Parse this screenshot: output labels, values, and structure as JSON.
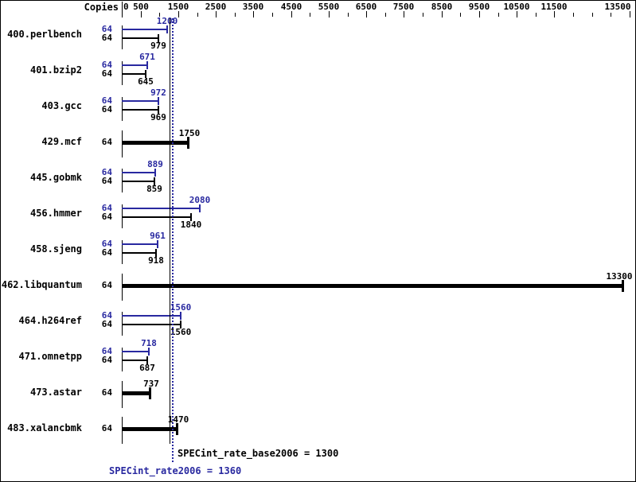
{
  "chart_data": {
    "type": "bar",
    "orientation": "horizontal",
    "copies_header": "Copies",
    "x_axis": {
      "min": 0,
      "max": 13500,
      "tick_step": 500,
      "labeled_ticks": [
        0,
        500,
        1500,
        2500,
        3500,
        4500,
        5500,
        6500,
        7500,
        8500,
        9500,
        10500,
        11500,
        13500
      ]
    },
    "benchmarks": [
      {
        "name": "400.perlbench",
        "bars": [
          {
            "series": "peak",
            "copies": "64",
            "value": 1200
          },
          {
            "series": "base",
            "copies": "64",
            "value": 979
          }
        ]
      },
      {
        "name": "401.bzip2",
        "bars": [
          {
            "series": "peak",
            "copies": "64",
            "value": 671
          },
          {
            "series": "base",
            "copies": "64",
            "value": 645
          }
        ]
      },
      {
        "name": "403.gcc",
        "bars": [
          {
            "series": "peak",
            "copies": "64",
            "value": 972
          },
          {
            "series": "base",
            "copies": "64",
            "value": 969
          }
        ]
      },
      {
        "name": "429.mcf",
        "bars": [
          {
            "series": "base+peak",
            "copies": "64",
            "value": 1750
          }
        ]
      },
      {
        "name": "445.gobmk",
        "bars": [
          {
            "series": "peak",
            "copies": "64",
            "value": 889
          },
          {
            "series": "base",
            "copies": "64",
            "value": 859
          }
        ]
      },
      {
        "name": "456.hmmer",
        "bars": [
          {
            "series": "peak",
            "copies": "64",
            "value": 2080
          },
          {
            "series": "base",
            "copies": "64",
            "value": 1840
          }
        ]
      },
      {
        "name": "458.sjeng",
        "bars": [
          {
            "series": "peak",
            "copies": "64",
            "value": 961
          },
          {
            "series": "base",
            "copies": "64",
            "value": 918
          }
        ]
      },
      {
        "name": "462.libquantum",
        "bars": [
          {
            "series": "base+peak",
            "copies": "64",
            "value": 13300
          }
        ]
      },
      {
        "name": "464.h264ref",
        "bars": [
          {
            "series": "peak",
            "copies": "64",
            "value": 1560
          },
          {
            "series": "base",
            "copies": "64",
            "value": 1560
          }
        ]
      },
      {
        "name": "471.omnetpp",
        "bars": [
          {
            "series": "peak",
            "copies": "64",
            "value": 718
          },
          {
            "series": "base",
            "copies": "64",
            "value": 687
          }
        ]
      },
      {
        "name": "473.astar",
        "bars": [
          {
            "series": "base+peak",
            "copies": "64",
            "value": 737
          }
        ]
      },
      {
        "name": "483.xalancbmk",
        "bars": [
          {
            "series": "base+peak",
            "copies": "64",
            "value": 1470
          }
        ]
      }
    ],
    "reference_lines": [
      {
        "series": "base",
        "label": "SPECint_rate_base2006 = 1300",
        "value": 1300,
        "style": "solid",
        "color": "#000000"
      },
      {
        "series": "peak",
        "label": "SPECint_rate2006 = 1360",
        "value": 1360,
        "style": "dotted",
        "color": "#2929a0"
      }
    ],
    "colors": {
      "peak": "#2929a0",
      "base": "#000000",
      "background": "#ffffff"
    }
  }
}
